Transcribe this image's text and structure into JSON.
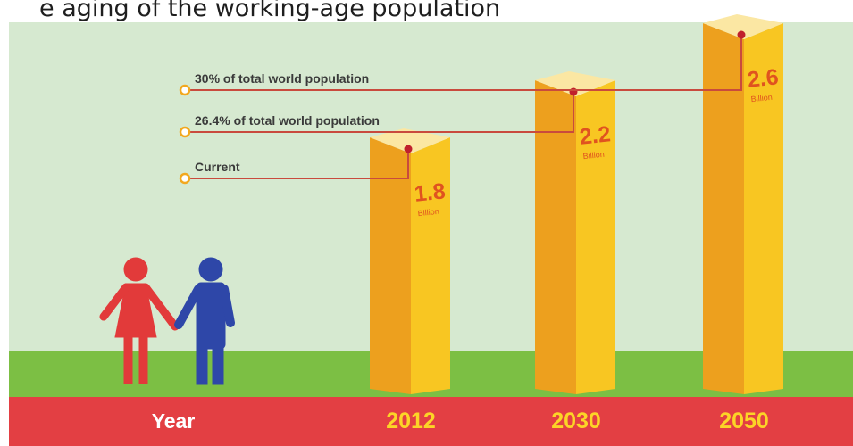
{
  "caption": "e aging of the working-age population",
  "chart_data": {
    "type": "bar",
    "categories": [
      "2012",
      "2030",
      "2050"
    ],
    "values": [
      1.8,
      2.2,
      2.6
    ],
    "value_labels": [
      "1.8",
      "2.2",
      "2.6"
    ],
    "unit": "Billion",
    "axis_label": "Year",
    "annotations": [
      {
        "text": "Current",
        "target": "2012"
      },
      {
        "text": "26.4% of total world population",
        "target": "2030"
      },
      {
        "text": "30% of total world population",
        "target": "2050"
      }
    ],
    "legend": "none",
    "grid": false
  },
  "colors": {
    "sky": "#d6e9d0",
    "grass": "#7cbf44",
    "band": "#e33f43",
    "bar_front": "#f8c622",
    "bar_side": "#eda01e",
    "bar_top": "#fbe7a3",
    "value_text": "#e0531f",
    "leader": "#c94a3d",
    "marker": "#c0202c",
    "ring": "#f2a81f",
    "year_text": "#fcd427",
    "axis_text": "#ffffff",
    "woman": "#e23a3a",
    "man": "#2e47a8"
  },
  "icons": [
    "woman-icon",
    "man-icon"
  ]
}
